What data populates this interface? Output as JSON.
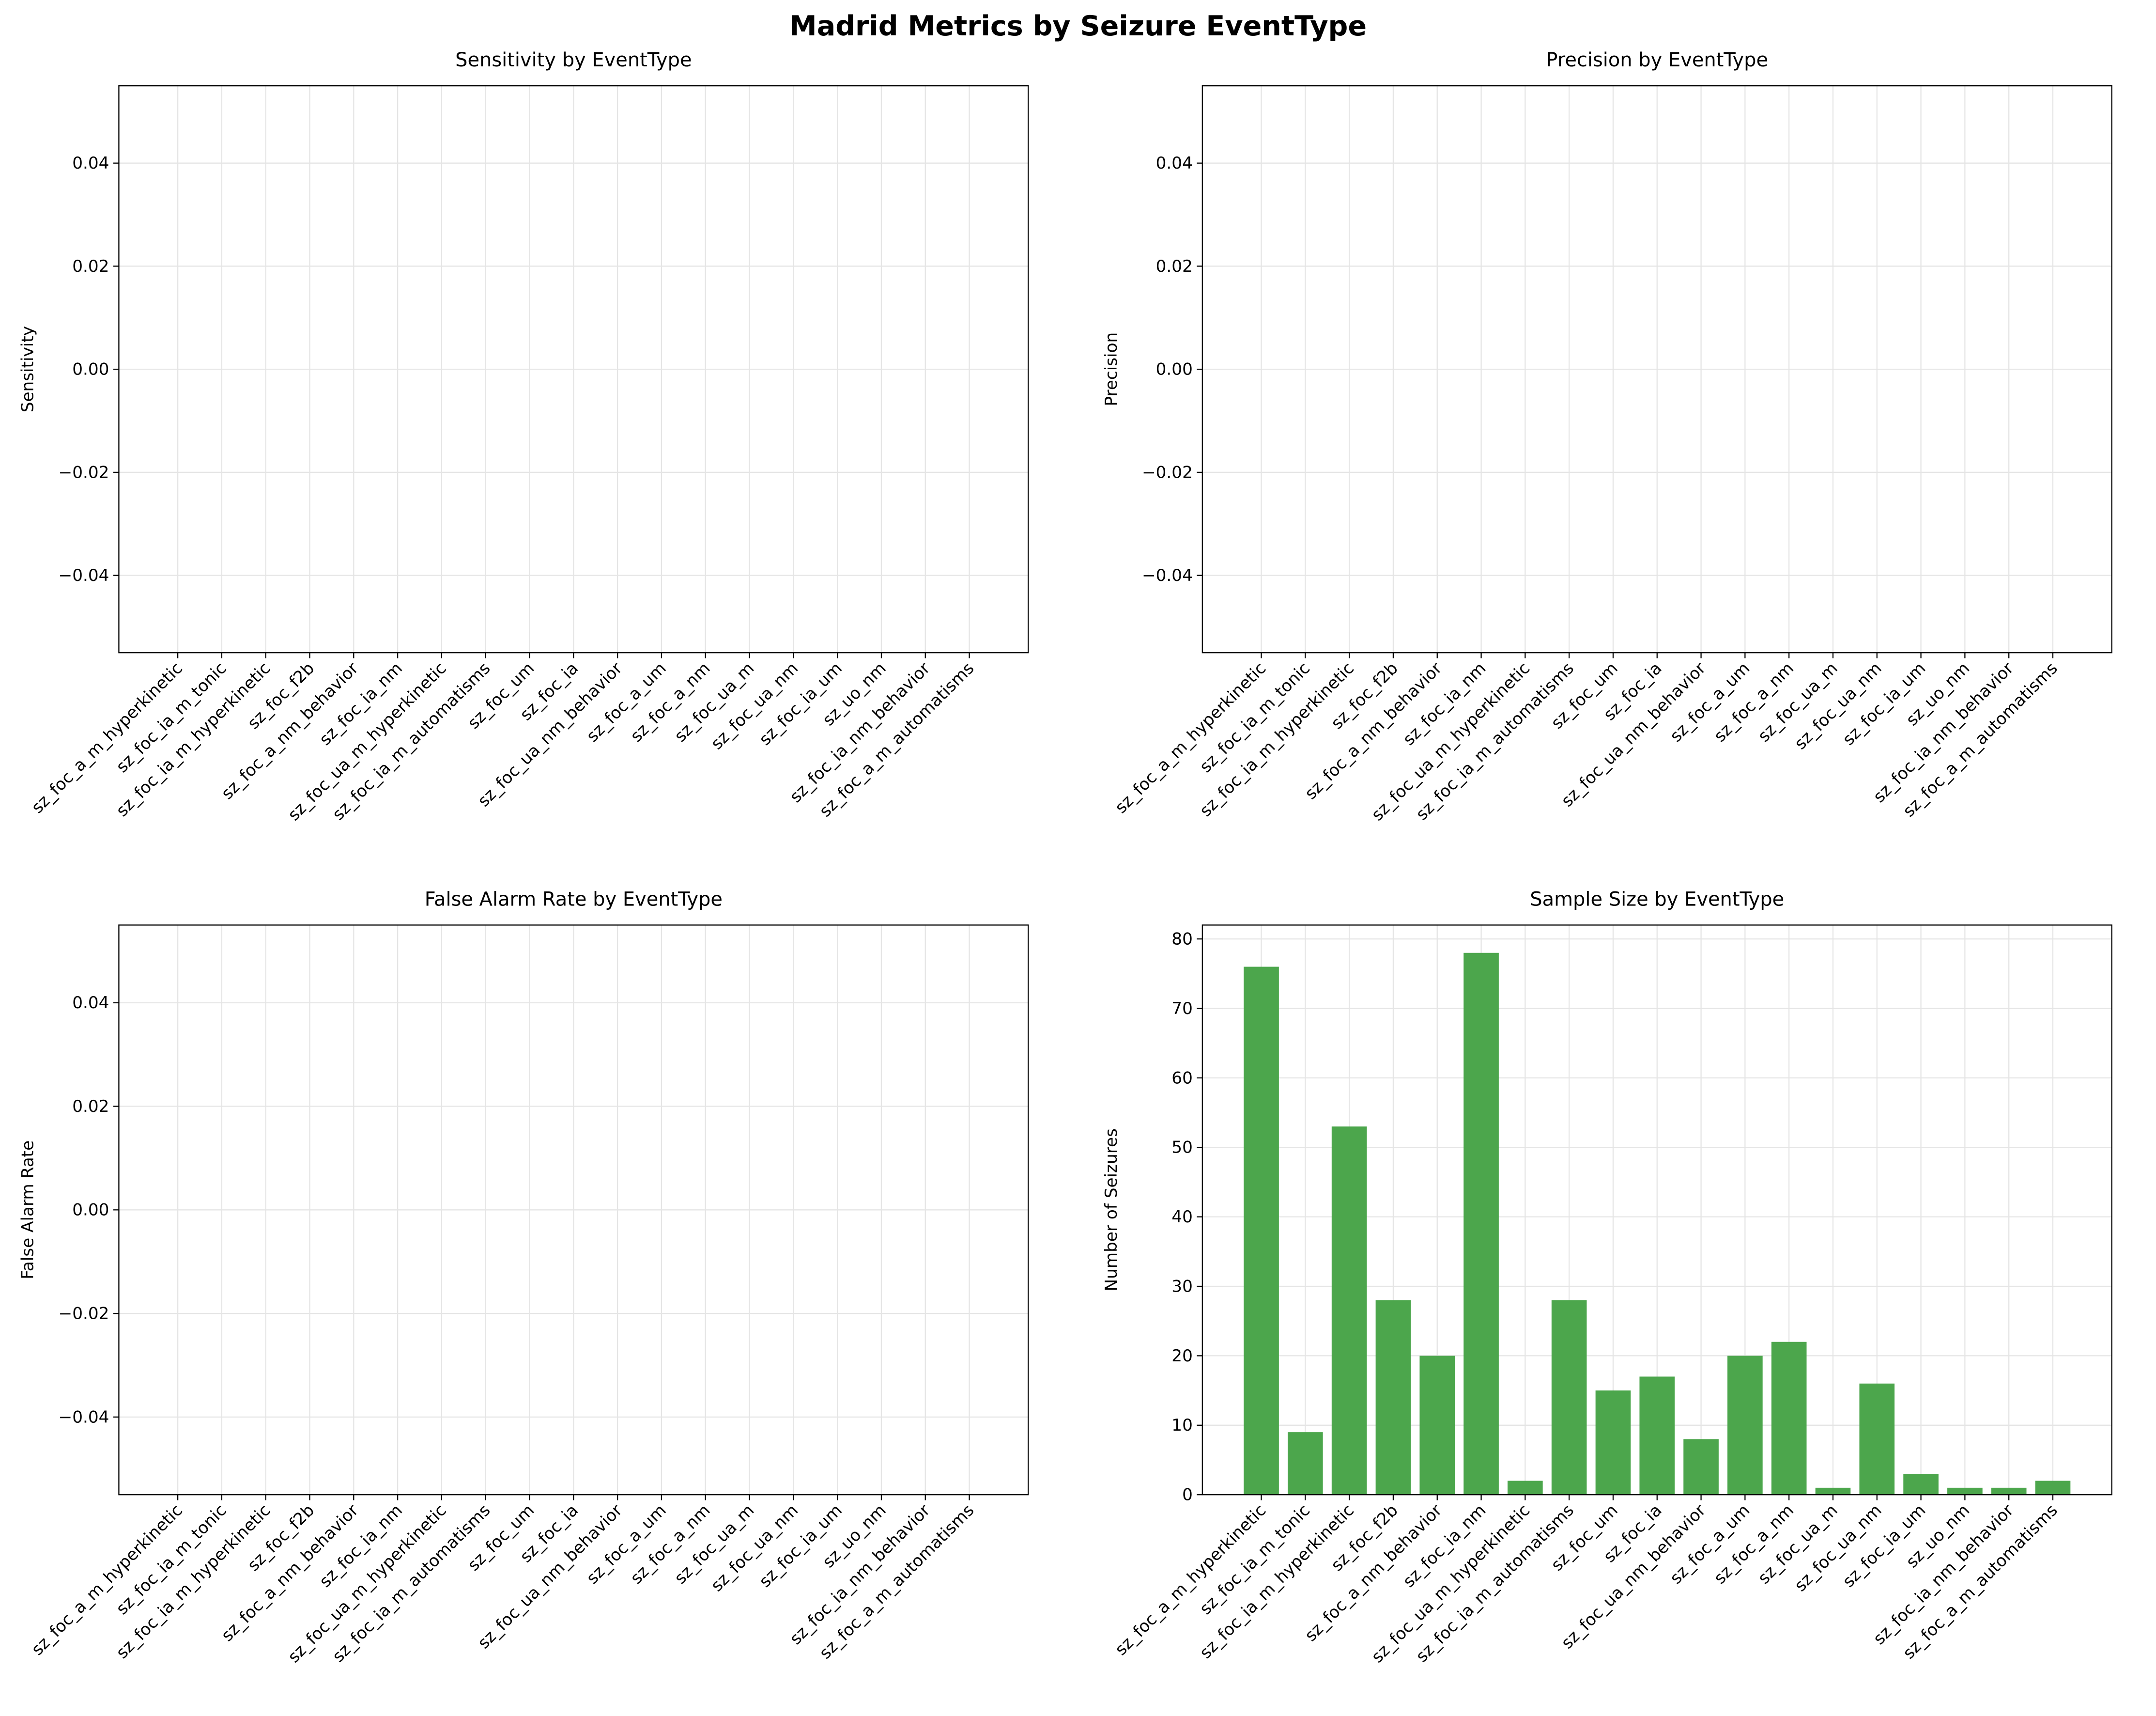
{
  "title": "Madrid Metrics by Seizure EventType",
  "chart_data": [
    {
      "type": "bar",
      "title": "Sensitivity by EventType",
      "ylabel": "Sensitivity",
      "categories": [
        "sz_foc_a_m_hyperkinetic",
        "sz_foc_ia_m_tonic",
        "sz_foc_ia_m_hyperkinetic",
        "sz_foc_f2b",
        "sz_foc_a_nm_behavior",
        "sz_foc_ia_nm",
        "sz_foc_ua_m_hyperkinetic",
        "sz_foc_ia_m_automatisms",
        "sz_foc_um",
        "sz_foc_ia",
        "sz_foc_ua_nm_behavior",
        "sz_foc_a_um",
        "sz_foc_a_nm",
        "sz_foc_ua_m",
        "sz_foc_ua_nm",
        "sz_foc_ia_um",
        "sz_uo_nm",
        "sz_foc_ia_nm_behavior",
        "sz_foc_a_m_automatisms"
      ],
      "ylim": [
        -0.055,
        0.055
      ],
      "yticks": [
        {
          "value": -0.04,
          "label": "−0.04"
        },
        {
          "value": -0.02,
          "label": "−0.02"
        },
        {
          "value": 0,
          "label": "0.00"
        },
        {
          "value": 0.02,
          "label": "0.02"
        },
        {
          "value": 0.04,
          "label": "0.04"
        }
      ],
      "grid": true
    },
    {
      "type": "bar",
      "title": "Precision by EventType",
      "ylabel": "Precision",
      "categories": [
        "sz_foc_a_m_hyperkinetic",
        "sz_foc_ia_m_tonic",
        "sz_foc_ia_m_hyperkinetic",
        "sz_foc_f2b",
        "sz_foc_a_nm_behavior",
        "sz_foc_ia_nm",
        "sz_foc_ua_m_hyperkinetic",
        "sz_foc_ia_m_automatisms",
        "sz_foc_um",
        "sz_foc_ia",
        "sz_foc_ua_nm_behavior",
        "sz_foc_a_um",
        "sz_foc_a_nm",
        "sz_foc_ua_m",
        "sz_foc_ua_nm",
        "sz_foc_ia_um",
        "sz_uo_nm",
        "sz_foc_ia_nm_behavior",
        "sz_foc_a_m_automatisms"
      ],
      "ylim": [
        -0.055,
        0.055
      ],
      "yticks": [
        {
          "value": -0.04,
          "label": "−0.04"
        },
        {
          "value": -0.02,
          "label": "−0.02"
        },
        {
          "value": 0,
          "label": "0.00"
        },
        {
          "value": 0.02,
          "label": "0.02"
        },
        {
          "value": 0.04,
          "label": "0.04"
        }
      ],
      "grid": true
    },
    {
      "type": "bar",
      "title": "False Alarm Rate by EventType",
      "ylabel": "False Alarm Rate",
      "categories": [
        "sz_foc_a_m_hyperkinetic",
        "sz_foc_ia_m_tonic",
        "sz_foc_ia_m_hyperkinetic",
        "sz_foc_f2b",
        "sz_foc_a_nm_behavior",
        "sz_foc_ia_nm",
        "sz_foc_ua_m_hyperkinetic",
        "sz_foc_ia_m_automatisms",
        "sz_foc_um",
        "sz_foc_ia",
        "sz_foc_ua_nm_behavior",
        "sz_foc_a_um",
        "sz_foc_a_nm",
        "sz_foc_ua_m",
        "sz_foc_ua_nm",
        "sz_foc_ia_um",
        "sz_uo_nm",
        "sz_foc_ia_nm_behavior",
        "sz_foc_a_m_automatisms"
      ],
      "ylim": [
        -0.055,
        0.055
      ],
      "yticks": [
        {
          "value": -0.04,
          "label": "−0.04"
        },
        {
          "value": -0.02,
          "label": "−0.02"
        },
        {
          "value": 0,
          "label": "0.00"
        },
        {
          "value": 0.02,
          "label": "0.02"
        },
        {
          "value": 0.04,
          "label": "0.04"
        }
      ],
      "grid": true
    },
    {
      "type": "bar",
      "title": "Sample Size by EventType",
      "ylabel": "Number of Seizures",
      "categories": [
        "sz_foc_a_m_hyperkinetic",
        "sz_foc_ia_m_tonic",
        "sz_foc_ia_m_hyperkinetic",
        "sz_foc_f2b",
        "sz_foc_a_nm_behavior",
        "sz_foc_ia_nm",
        "sz_foc_ua_m_hyperkinetic",
        "sz_foc_ia_m_automatisms",
        "sz_foc_um",
        "sz_foc_ia",
        "sz_foc_ua_nm_behavior",
        "sz_foc_a_um",
        "sz_foc_a_nm",
        "sz_foc_ua_m",
        "sz_foc_ua_nm",
        "sz_foc_ia_um",
        "sz_uo_nm",
        "sz_foc_ia_nm_behavior",
        "sz_foc_a_m_automatisms"
      ],
      "values": [
        76,
        9,
        53,
        28,
        20,
        78,
        2,
        28,
        15,
        17,
        8,
        20,
        22,
        1,
        16,
        3,
        1,
        1,
        2
      ],
      "color": "#4ca64c",
      "ylim": [
        0,
        82
      ],
      "yticks": [
        0,
        10,
        20,
        30,
        40,
        50,
        60,
        70,
        80
      ],
      "grid": true
    }
  ]
}
